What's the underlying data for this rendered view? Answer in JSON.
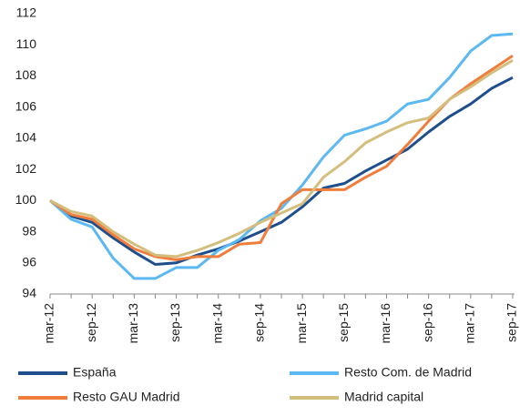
{
  "chart_data": {
    "type": "line",
    "categories": [
      "mar-12",
      null,
      "sep-12",
      null,
      "mar-13",
      null,
      "sep-13",
      null,
      "mar-14",
      null,
      "sep-14",
      null,
      "mar-15",
      null,
      "sep-15",
      null,
      "mar-16",
      null,
      "sep-16",
      null,
      "mar-17",
      null,
      "sep-17"
    ],
    "series": [
      {
        "name": "España",
        "color": "#1f4e8c",
        "values": [
          100,
          99.0,
          98.6,
          97.6,
          96.7,
          95.9,
          96.0,
          96.5,
          96.9,
          97.4,
          98.0,
          98.6,
          99.6,
          100.8,
          101.1,
          101.9,
          102.6,
          103.3,
          104.4,
          105.4,
          106.2,
          107.2,
          107.9
        ]
      },
      {
        "name": "Resto Com. de Madrid",
        "color": "#5bb8f0",
        "values": [
          100,
          98.8,
          98.3,
          96.3,
          95.0,
          95.0,
          95.7,
          95.7,
          96.8,
          97.5,
          98.7,
          99.5,
          101.0,
          102.8,
          104.2,
          104.6,
          105.1,
          106.2,
          106.5,
          107.9,
          109.6,
          110.6,
          110.7
        ]
      },
      {
        "name": "Resto GAU Madrid",
        "color": "#f07d3c",
        "values": [
          100,
          99.1,
          98.8,
          97.8,
          96.9,
          96.4,
          96.2,
          96.4,
          96.4,
          97.2,
          97.3,
          99.8,
          100.7,
          100.7,
          100.7,
          101.5,
          102.2,
          103.6,
          105.1,
          106.5,
          107.5,
          108.4,
          109.3
        ]
      },
      {
        "name": "Madrid capital",
        "color": "#d4be7e",
        "values": [
          100,
          99.3,
          99.0,
          98.0,
          97.2,
          96.5,
          96.4,
          96.8,
          97.3,
          97.9,
          98.6,
          99.2,
          99.8,
          101.5,
          102.5,
          103.7,
          104.4,
          105.0,
          105.3,
          106.5,
          107.3,
          108.2,
          109.0
        ]
      }
    ],
    "ylim": [
      94,
      112
    ],
    "yticks": [
      94,
      96,
      98,
      100,
      102,
      104,
      106,
      108,
      110,
      112
    ],
    "grid": false
  }
}
